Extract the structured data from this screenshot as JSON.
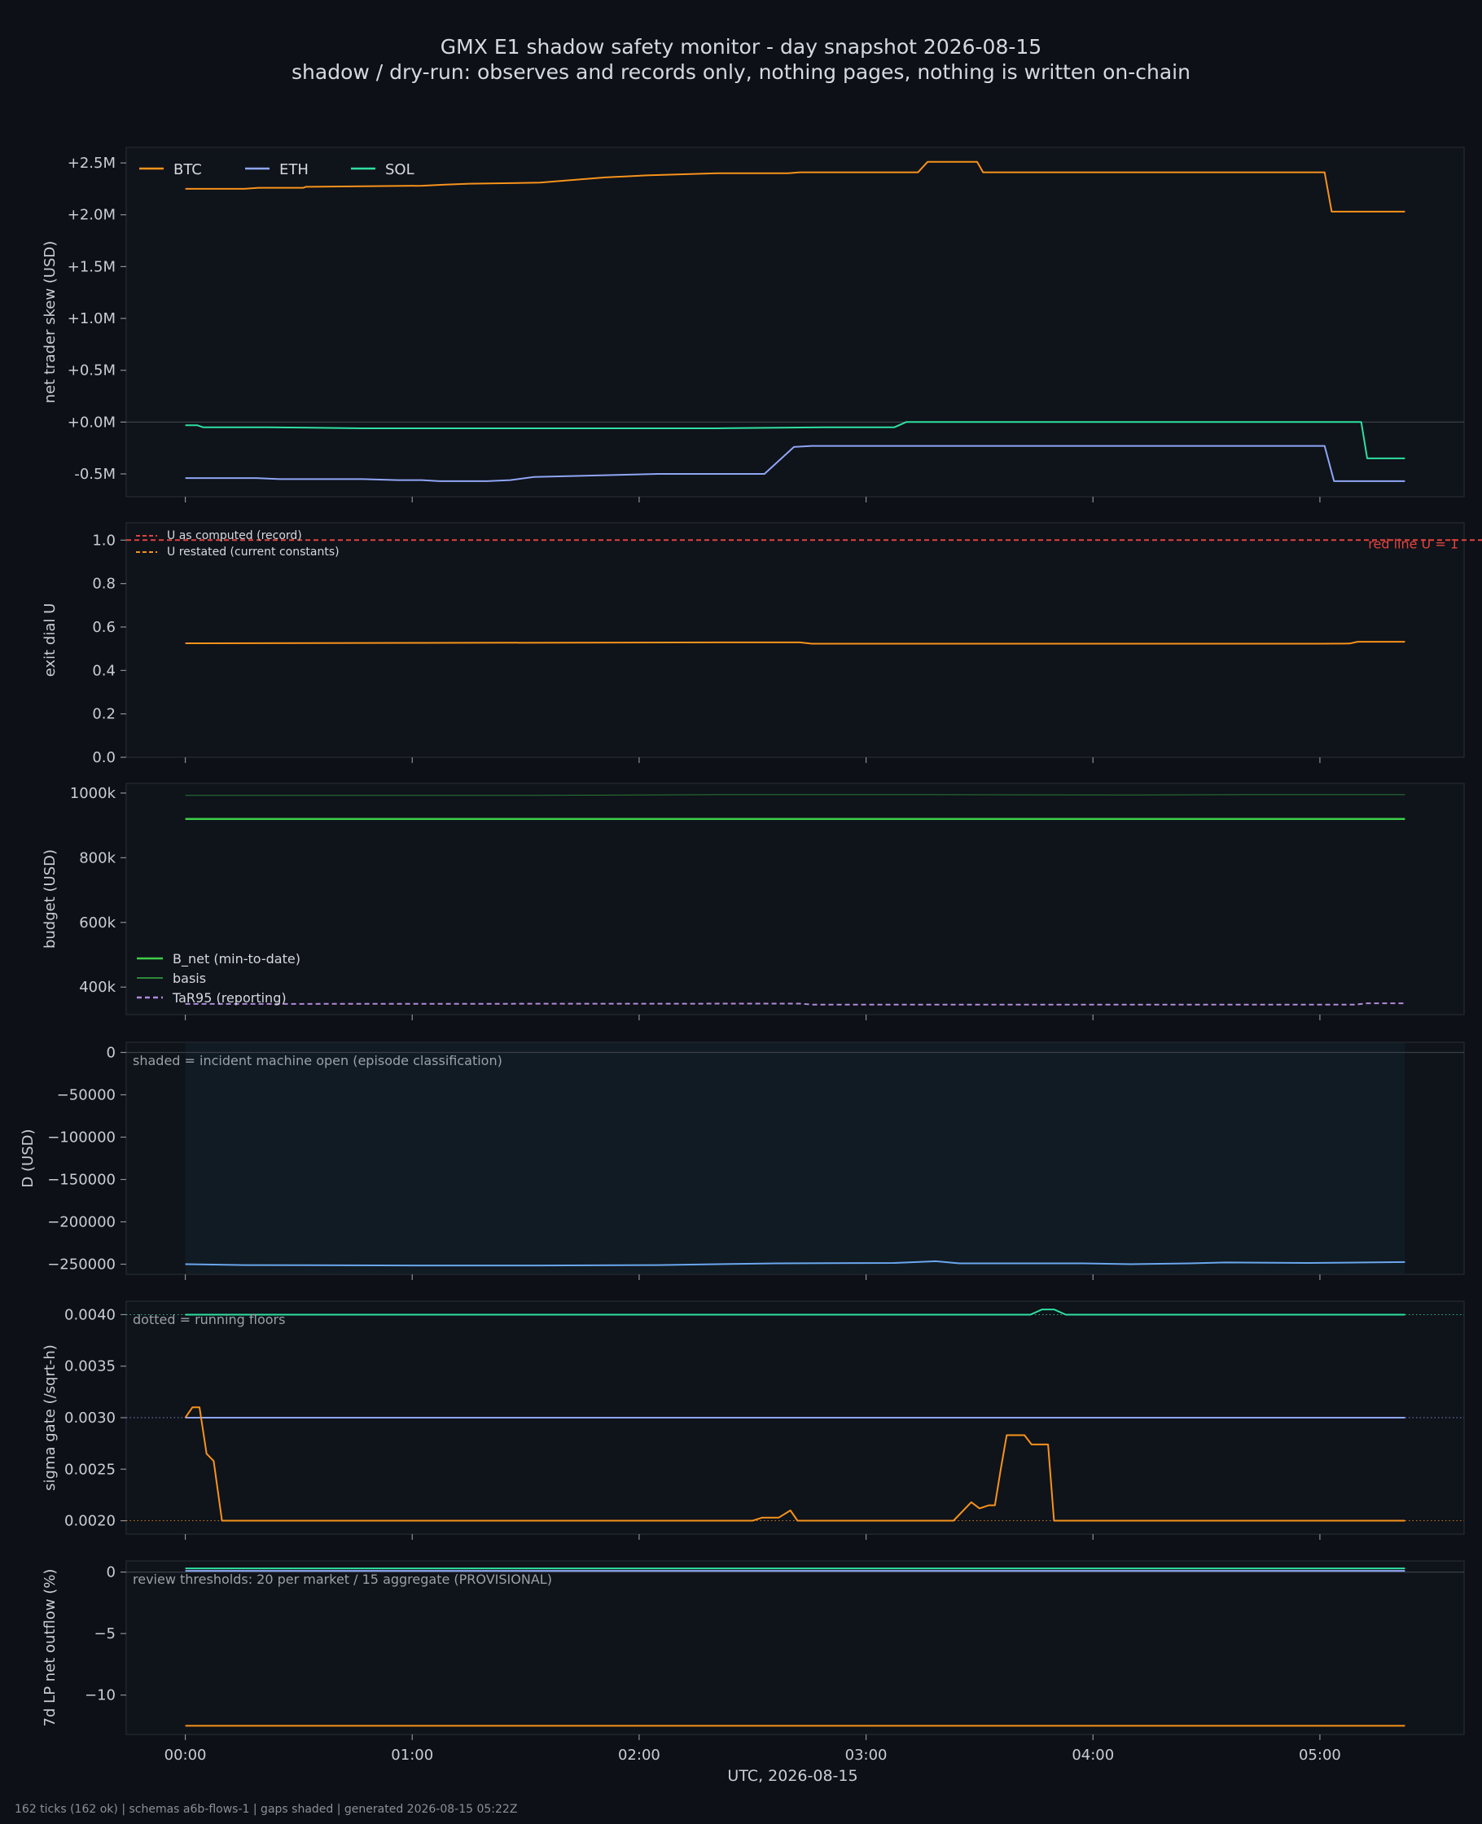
{
  "header": {
    "title": "GMX E1 shadow safety monitor - day snapshot 2026-08-15",
    "subtitle": "shadow / dry-run: observes and records only, nothing pages, nothing is written on-chain"
  },
  "footer": "162 ticks (162 ok) | schemas a6b-flows-1 | gaps shaded | generated 2026-08-15 05:22Z",
  "colors": {
    "background": "#0d1017",
    "panel": "#10141b",
    "btc": "#f7931a",
    "eth": "#8fa6f5",
    "sol": "#2fe0a0",
    "bnet": "#3ecf4a",
    "tar95": "#b08ad8",
    "red": "#e0433d",
    "gate_blue": "#8fa6f5",
    "d_line": "#6aa7ee"
  },
  "chart_data": [
    {
      "type": "line",
      "ylabel": "net trader skew (USD)",
      "ylim": [
        -0.72,
        2.65
      ],
      "yticks": [
        2.5,
        2.0,
        1.5,
        1.0,
        0.5,
        0.0,
        -0.5
      ],
      "ytick_labels": [
        "+2.5M",
        "+2.0M",
        "+1.5M",
        "+1.0M",
        "+0.5M",
        "+0.0M",
        "-0.5M"
      ],
      "zero_line": true,
      "legend": "top-left",
      "series": [
        {
          "name": "BTC",
          "color_key": "btc",
          "points": [
            [
              0,
              2.25
            ],
            [
              50,
              2.25
            ],
            [
              62,
              2.26
            ],
            [
              100,
              2.26
            ],
            [
              102,
              2.27
            ],
            [
              200,
              2.28
            ],
            [
              220,
              2.29
            ],
            [
              240,
              2.3
            ],
            [
              300,
              2.31
            ],
            [
              355,
              2.36
            ],
            [
              390,
              2.38
            ],
            [
              450,
              2.4
            ],
            [
              510,
              2.4
            ],
            [
              520,
              2.41
            ],
            [
              620,
              2.41
            ],
            [
              628,
              2.51
            ],
            [
              670,
              2.51
            ],
            [
              675,
              2.41
            ],
            [
              740,
              2.41
            ],
            [
              900,
              2.41
            ],
            [
              964,
              2.41
            ],
            [
              970,
              2.03
            ],
            [
              1000,
              2.03
            ],
            [
              1032,
              2.03
            ]
          ]
        },
        {
          "name": "ETH",
          "color_key": "eth",
          "points": [
            [
              0,
              -0.54
            ],
            [
              60,
              -0.54
            ],
            [
              80,
              -0.55
            ],
            [
              150,
              -0.55
            ],
            [
              180,
              -0.56
            ],
            [
              200,
              -0.56
            ],
            [
              215,
              -0.57
            ],
            [
              255,
              -0.57
            ],
            [
              275,
              -0.56
            ],
            [
              295,
              -0.53
            ],
            [
              400,
              -0.5
            ],
            [
              450,
              -0.5
            ],
            [
              490,
              -0.5
            ],
            [
              515,
              -0.24
            ],
            [
              530,
              -0.23
            ],
            [
              964,
              -0.23
            ],
            [
              972,
              -0.57
            ],
            [
              1000,
              -0.57
            ],
            [
              1032,
              -0.57
            ]
          ]
        },
        {
          "name": "SOL",
          "color_key": "sol",
          "points": [
            [
              0,
              -0.03
            ],
            [
              10,
              -0.03
            ],
            [
              15,
              -0.05
            ],
            [
              70,
              -0.05
            ],
            [
              150,
              -0.06
            ],
            [
              300,
              -0.06
            ],
            [
              450,
              -0.06
            ],
            [
              540,
              -0.05
            ],
            [
              575,
              -0.05
            ],
            [
              600,
              -0.05
            ],
            [
              610,
              0.0
            ],
            [
              640,
              0.0
            ],
            [
              800,
              0.0
            ],
            [
              940,
              0.0
            ],
            [
              980,
              0.0
            ],
            [
              995,
              0.0
            ],
            [
              1000,
              -0.35
            ],
            [
              1032,
              -0.35
            ]
          ]
        }
      ]
    },
    {
      "type": "line",
      "ylabel": "exit dial U",
      "ylim": [
        0.0,
        1.08
      ],
      "yticks": [
        0.0,
        0.2,
        0.4,
        0.6,
        0.8,
        1.0
      ],
      "ytick_labels": [
        "0.0",
        "0.2",
        "0.4",
        "0.6",
        "0.8",
        "1.0"
      ],
      "legend": "top-left",
      "annotations": [
        {
          "text": "red line U = 1",
          "color_key": "red"
        }
      ],
      "series": [
        {
          "name": "U as computed (record)",
          "color_key": "red",
          "style": "dashed",
          "points": [
            [
              -50,
              1.0
            ],
            [
              1100,
              1.0
            ]
          ]
        },
        {
          "name": "U restated (current constants)",
          "color_key": "btc",
          "style": "dashed",
          "points": []
        },
        {
          "name": "",
          "color_key": "btc",
          "style": "solid",
          "points": [
            [
              0,
              0.525
            ],
            [
              200,
              0.527
            ],
            [
              460,
              0.529
            ],
            [
              520,
              0.529
            ],
            [
              530,
              0.523
            ],
            [
              960,
              0.523
            ],
            [
              985,
              0.524
            ],
            [
              992,
              0.532
            ],
            [
              1032,
              0.532
            ]
          ]
        }
      ]
    },
    {
      "type": "line",
      "ylabel": "budget (USD)",
      "ylim": [
        315,
        1030
      ],
      "yticks": [
        1000,
        800,
        600,
        400
      ],
      "ytick_labels": [
        "1000k",
        "800k",
        "600k",
        "400k"
      ],
      "legend": "lower-left",
      "series": [
        {
          "name": "B_net (min-to-date)",
          "color_key": "bnet",
          "width": 2.5,
          "points": [
            [
              0,
              920
            ],
            [
              1032,
              920
            ]
          ]
        },
        {
          "name": "basis",
          "color_key": "bnet",
          "width": 1,
          "thin": true,
          "points": [
            [
              0,
              993
            ],
            [
              300,
              993
            ],
            [
              450,
              995
            ],
            [
              630,
              995
            ],
            [
              800,
              994
            ],
            [
              900,
              995
            ],
            [
              1032,
              995
            ]
          ]
        },
        {
          "name": "TaR95 (reporting)",
          "color_key": "tar95",
          "style": "dashed",
          "points": [
            [
              0,
              348
            ],
            [
              520,
              349
            ],
            [
              530,
              346
            ],
            [
              990,
              346
            ],
            [
              1000,
              350
            ],
            [
              1032,
              350
            ]
          ]
        }
      ]
    },
    {
      "type": "line",
      "ylabel": "D (USD)",
      "ylim": [
        -262000,
        12000
      ],
      "yticks": [
        0,
        -50000,
        -100000,
        -150000,
        -200000,
        -250000
      ],
      "ytick_labels": [
        "0",
        "−50000",
        "−100000",
        "−150000",
        "−200000",
        "−250000"
      ],
      "zero_line": true,
      "annotations": [
        {
          "text": "shaded = incident machine open (episode classification)"
        }
      ],
      "shaded": [
        0,
        1032
      ],
      "series": [
        {
          "name": "",
          "color_key": "d_line",
          "points": [
            [
              0,
              -250000
            ],
            [
              50,
              -251000
            ],
            [
              200,
              -251500
            ],
            [
              300,
              -251500
            ],
            [
              400,
              -251000
            ],
            [
              450,
              -250000
            ],
            [
              500,
              -249000
            ],
            [
              600,
              -248500
            ],
            [
              635,
              -246500
            ],
            [
              655,
              -249000
            ],
            [
              760,
              -249000
            ],
            [
              800,
              -250000
            ],
            [
              850,
              -249000
            ],
            [
              880,
              -248000
            ],
            [
              950,
              -248500
            ],
            [
              1032,
              -247500
            ]
          ]
        }
      ]
    },
    {
      "type": "line",
      "ylabel": "sigma gate (/sqrt-h)",
      "ylim": [
        0.00187,
        0.00413
      ],
      "yticks": [
        0.004,
        0.0035,
        0.003,
        0.0025,
        0.002
      ],
      "ytick_labels": [
        "0.0040",
        "0.0035",
        "0.0030",
        "0.0025",
        "0.0020"
      ],
      "annotations": [
        {
          "text": "dotted = running floors"
        }
      ],
      "floors": [
        {
          "value": 0.004,
          "color_key": "sol"
        },
        {
          "value": 0.003,
          "color_key": "eth"
        },
        {
          "value": 0.002,
          "color_key": "btc"
        }
      ],
      "series": [
        {
          "name": "",
          "color_key": "sol",
          "points": [
            [
              0,
              0.004
            ],
            [
              715,
              0.004
            ],
            [
              725,
              0.00405
            ],
            [
              735,
              0.00405
            ],
            [
              745,
              0.004
            ],
            [
              1032,
              0.004
            ]
          ]
        },
        {
          "name": "",
          "color_key": "eth",
          "points": [
            [
              0,
              0.003
            ],
            [
              1032,
              0.003
            ]
          ]
        },
        {
          "name": "",
          "color_key": "btc",
          "points": [
            [
              0,
              0.003
            ],
            [
              6,
              0.0031
            ],
            [
              12,
              0.0031
            ],
            [
              18,
              0.00265
            ],
            [
              24,
              0.00258
            ],
            [
              31,
              0.002
            ],
            [
              480,
              0.002
            ],
            [
              488,
              0.00203
            ],
            [
              502,
              0.00203
            ],
            [
              512,
              0.0021
            ],
            [
              518,
              0.002
            ],
            [
              650,
              0.002
            ],
            [
              665,
              0.00218
            ],
            [
              672,
              0.00212
            ],
            [
              680,
              0.00215
            ],
            [
              685,
              0.00215
            ],
            [
              690,
              0.0025
            ],
            [
              695,
              0.00283
            ],
            [
              710,
              0.00283
            ],
            [
              716,
              0.00274
            ],
            [
              730,
              0.00274
            ],
            [
              735,
              0.002
            ],
            [
              1032,
              0.002
            ]
          ]
        }
      ]
    },
    {
      "type": "line",
      "ylabel": "7d LP net outflow (%)",
      "ylim": [
        -13.2,
        0.9
      ],
      "yticks": [
        0,
        -5,
        -10
      ],
      "ytick_labels": [
        "0",
        "−5",
        "−10"
      ],
      "zero_line": true,
      "annotations": [
        {
          "text": "review thresholds: 20 per market / 15 aggregate (PROVISIONAL)"
        }
      ],
      "series": [
        {
          "name": "",
          "color_key": "eth",
          "points": [
            [
              0,
              0.1
            ],
            [
              1032,
              0.1
            ]
          ]
        },
        {
          "name": "",
          "color_key": "sol",
          "points": [
            [
              0,
              0.3
            ],
            [
              1032,
              0.3
            ]
          ]
        },
        {
          "name": "",
          "color_key": "btc",
          "points": [
            [
              0,
              -12.5
            ],
            [
              1032,
              -12.5
            ]
          ]
        }
      ]
    }
  ],
  "x_axis": {
    "label": "UTC, 2026-08-15",
    "range": [
      -50,
      1082
    ],
    "ticks": [
      0,
      192,
      384,
      576,
      768,
      960
    ],
    "tick_labels": [
      "00:00",
      "01:00",
      "02:00",
      "03:00",
      "04:00",
      "05:00"
    ]
  }
}
